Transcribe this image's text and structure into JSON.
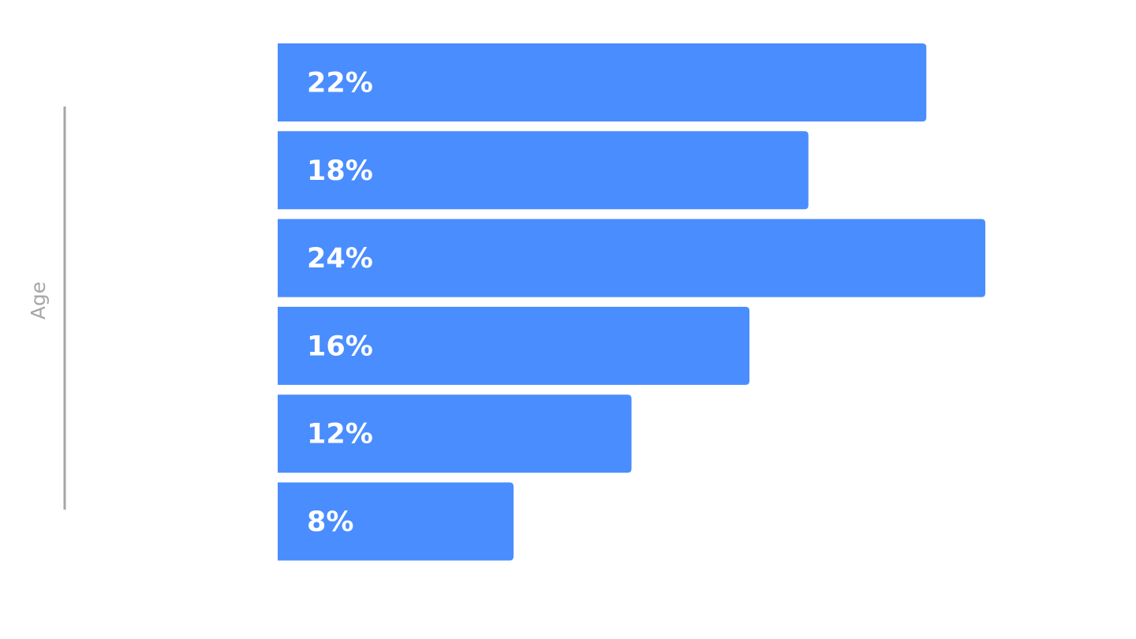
{
  "chart_data": {
    "type": "bar",
    "orientation": "horizontal",
    "ylabel": "Age",
    "values": [
      22,
      18,
      24,
      16,
      12,
      8
    ],
    "data_labels": [
      "22%",
      "18%",
      "24%",
      "16%",
      "12%",
      "8%"
    ],
    "xlim": [
      0,
      24
    ],
    "grid": false,
    "legend": "none",
    "bar_color": "#4a8dff",
    "label_color": "#ffffff",
    "axis_color": "#a6a6a6"
  }
}
